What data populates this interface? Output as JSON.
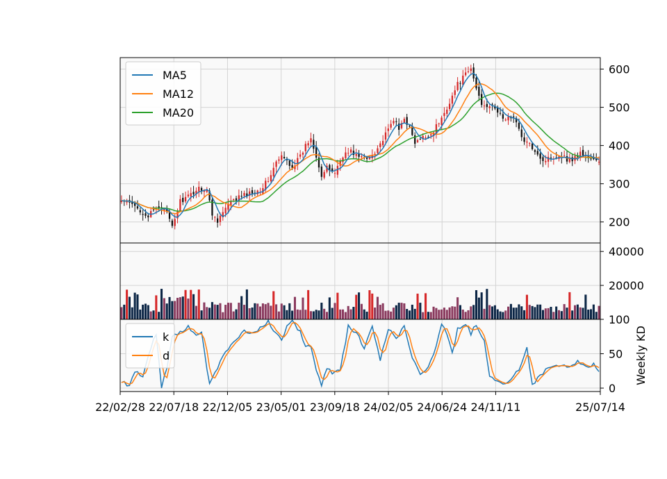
{
  "chart_data": {
    "type": "candlestick",
    "x_tick_labels": [
      "22/02/28",
      "22/07/18",
      "22/12/05",
      "23/05/01",
      "23/09/18",
      "24/02/05",
      "24/06/24",
      "24/11/11",
      "25/07/14"
    ],
    "x_tick_index": [
      0,
      20,
      40,
      60,
      80,
      100,
      120,
      140,
      179
    ],
    "price_panel": {
      "y_ticks": [
        200,
        300,
        400,
        500,
        600
      ],
      "ylim": [
        145,
        630
      ],
      "legend": [
        "MA5",
        "MA12",
        "MA20"
      ],
      "legend_position": "upper-left",
      "grid": true
    },
    "volume_panel": {
      "y_ticks": [
        20000,
        40000
      ],
      "ylim": [
        0,
        45000
      ],
      "grid": true
    },
    "kd_panel": {
      "ylabel": "Weekly KD",
      "y_ticks": [
        0,
        50,
        100
      ],
      "ylim": [
        -5,
        100
      ],
      "legend": [
        "k",
        "d"
      ],
      "legend_position": "upper-left",
      "grid": true
    },
    "close_anchors": [
      [
        0,
        255
      ],
      [
        3,
        248
      ],
      [
        6,
        235
      ],
      [
        10,
        215
      ],
      [
        13,
        235
      ],
      [
        16,
        240
      ],
      [
        19,
        185
      ],
      [
        22,
        255
      ],
      [
        25,
        265
      ],
      [
        29,
        290
      ],
      [
        32,
        285
      ],
      [
        34,
        220
      ],
      [
        36,
        205
      ],
      [
        40,
        245
      ],
      [
        44,
        265
      ],
      [
        48,
        275
      ],
      [
        52,
        285
      ],
      [
        55,
        310
      ],
      [
        58,
        355
      ],
      [
        60,
        370
      ],
      [
        62,
        360
      ],
      [
        64,
        345
      ],
      [
        67,
        370
      ],
      [
        69,
        400
      ],
      [
        71,
        420
      ],
      [
        73,
        375
      ],
      [
        75,
        320
      ],
      [
        77,
        340
      ],
      [
        80,
        330
      ],
      [
        83,
        375
      ],
      [
        86,
        385
      ],
      [
        89,
        370
      ],
      [
        92,
        365
      ],
      [
        95,
        385
      ],
      [
        98,
        415
      ],
      [
        100,
        440
      ],
      [
        102,
        470
      ],
      [
        104,
        440
      ],
      [
        106,
        475
      ],
      [
        108,
        445
      ],
      [
        110,
        405
      ],
      [
        113,
        420
      ],
      [
        116,
        430
      ],
      [
        118,
        450
      ],
      [
        120,
        470
      ],
      [
        122,
        500
      ],
      [
        124,
        530
      ],
      [
        126,
        560
      ],
      [
        129,
        585
      ],
      [
        131,
        600
      ],
      [
        133,
        550
      ],
      [
        135,
        510
      ],
      [
        138,
        505
      ],
      [
        141,
        490
      ],
      [
        144,
        465
      ],
      [
        147,
        480
      ],
      [
        150,
        420
      ],
      [
        153,
        400
      ],
      [
        155,
        390
      ],
      [
        158,
        360
      ],
      [
        161,
        370
      ],
      [
        165,
        375
      ],
      [
        168,
        360
      ],
      [
        172,
        380
      ],
      [
        176,
        365
      ],
      [
        179,
        355
      ]
    ],
    "k_anchors": [
      [
        0,
        10
      ],
      [
        3,
        4
      ],
      [
        5,
        25
      ],
      [
        8,
        18
      ],
      [
        11,
        60
      ],
      [
        13,
        78
      ],
      [
        15,
        0
      ],
      [
        17,
        30
      ],
      [
        19,
        75
      ],
      [
        22,
        80
      ],
      [
        25,
        90
      ],
      [
        28,
        78
      ],
      [
        30,
        80
      ],
      [
        33,
        5
      ],
      [
        35,
        20
      ],
      [
        37,
        40
      ],
      [
        40,
        55
      ],
      [
        43,
        72
      ],
      [
        46,
        85
      ],
      [
        49,
        80
      ],
      [
        52,
        88
      ],
      [
        55,
        96
      ],
      [
        57,
        85
      ],
      [
        60,
        70
      ],
      [
        62,
        88
      ],
      [
        64,
        96
      ],
      [
        67,
        82
      ],
      [
        69,
        62
      ],
      [
        71,
        58
      ],
      [
        73,
        28
      ],
      [
        75,
        5
      ],
      [
        77,
        30
      ],
      [
        79,
        20
      ],
      [
        82,
        25
      ],
      [
        85,
        90
      ],
      [
        88,
        80
      ],
      [
        91,
        60
      ],
      [
        94,
        90
      ],
      [
        97,
        40
      ],
      [
        100,
        88
      ],
      [
        103,
        70
      ],
      [
        106,
        92
      ],
      [
        109,
        45
      ],
      [
        112,
        22
      ],
      [
        115,
        28
      ],
      [
        118,
        60
      ],
      [
        120,
        95
      ],
      [
        122,
        80
      ],
      [
        124,
        50
      ],
      [
        126,
        85
      ],
      [
        129,
        95
      ],
      [
        131,
        80
      ],
      [
        133,
        92
      ],
      [
        136,
        70
      ],
      [
        138,
        20
      ],
      [
        140,
        10
      ],
      [
        143,
        5
      ],
      [
        146,
        15
      ],
      [
        149,
        25
      ],
      [
        152,
        60
      ],
      [
        154,
        5
      ],
      [
        156,
        15
      ],
      [
        159,
        25
      ],
      [
        162,
        30
      ],
      [
        165,
        35
      ],
      [
        168,
        30
      ],
      [
        171,
        38
      ],
      [
        174,
        30
      ],
      [
        177,
        35
      ],
      [
        179,
        25
      ]
    ]
  }
}
